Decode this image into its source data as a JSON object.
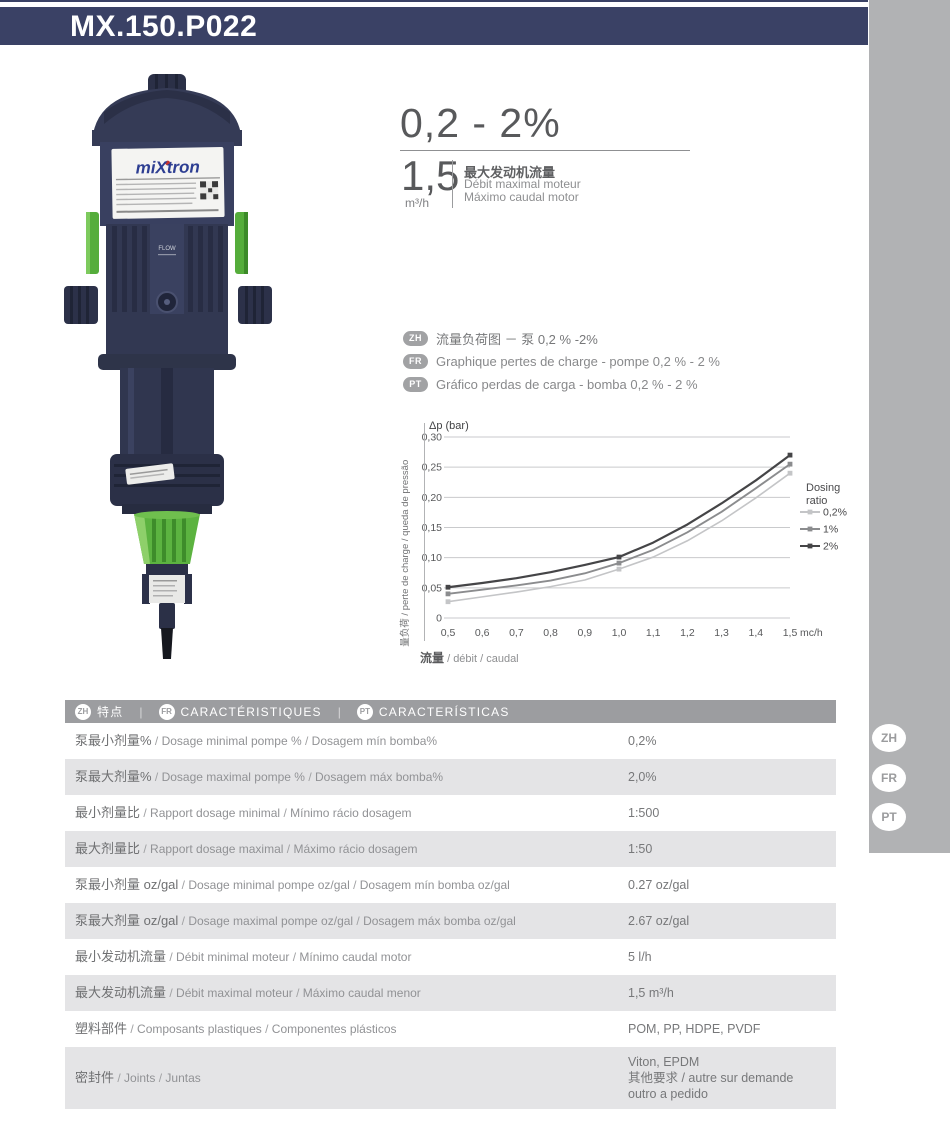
{
  "page": {
    "title": "MX.150.P022"
  },
  "sidebar": {
    "languages": [
      "ZH",
      "FR",
      "PT"
    ]
  },
  "product": {
    "brand": "miXtron",
    "body_label": "FLOW",
    "dosing_range": "0,2 - 2%",
    "max_flow_value": "1,5",
    "max_flow_unit": "m³/h",
    "max_flow_label_zh": "最大发动机流量",
    "max_flow_label_fr": "Débit maximal moteur",
    "max_flow_label_pt": "Máximo caudal motor"
  },
  "chart_captions": [
    {
      "lang": "ZH",
      "text": "流量负荷图 － 泵 0,2 % -2%"
    },
    {
      "lang": "FR",
      "text": "Graphique pertes de charge - pompe 0,2 % - 2 %"
    },
    {
      "lang": "PT",
      "text": "Gráfico perdas de carga  -  bomba 0,2 % - 2 %"
    }
  ],
  "chart_data": {
    "type": "line",
    "ylabel_top": "Δp (bar)",
    "ylabel_side": "流量负荷 / perte de charge / queda de pressão",
    "xlabel_unit": "mc/h",
    "xlabel_bottom_zh": "流量",
    "xlabel_bottom_latin": "/ débit / caudal",
    "ylim": [
      0,
      0.3
    ],
    "xlim": [
      0.5,
      1.5
    ],
    "y_tick_values": [
      0,
      0.05,
      0.1,
      0.15,
      0.2,
      0.25,
      0.3
    ],
    "y_ticks": [
      "0",
      "0,05",
      "0,10",
      "0,15",
      "0,20",
      "0,25",
      "0,30"
    ],
    "x_tick_values": [
      0.5,
      0.6,
      0.7,
      0.8,
      0.9,
      1.0,
      1.1,
      1.2,
      1.3,
      1.4,
      1.5
    ],
    "x_ticks": [
      "0,5",
      "0,6",
      "0,7",
      "0,8",
      "0,9",
      "1,0",
      "1,1",
      "1,2",
      "1,3",
      "1,4",
      "1,5"
    ],
    "legend_title": "Dosing ratio",
    "x": [
      0.5,
      0.6,
      0.7,
      0.8,
      0.9,
      1.0,
      1.1,
      1.2,
      1.3,
      1.4,
      1.5
    ],
    "marker_x": [
      0.5,
      1.0,
      1.5
    ],
    "series": [
      {
        "name": "0,2%",
        "color": "#c4c5c7",
        "width": 1.6,
        "values": [
          0.027,
          0.035,
          0.043,
          0.052,
          0.063,
          0.081,
          0.101,
          0.128,
          0.161,
          0.199,
          0.24
        ]
      },
      {
        "name": "1%",
        "color": "#8b8c8e",
        "width": 1.9,
        "values": [
          0.04,
          0.047,
          0.054,
          0.062,
          0.074,
          0.091,
          0.113,
          0.142,
          0.176,
          0.215,
          0.255
        ]
      },
      {
        "name": "2%",
        "color": "#454547",
        "width": 2.2,
        "values": [
          0.051,
          0.058,
          0.066,
          0.076,
          0.088,
          0.101,
          0.125,
          0.155,
          0.19,
          0.228,
          0.27
        ]
      }
    ],
    "grid": true,
    "legend_position": "right"
  },
  "spec_table": {
    "header": {
      "zh_badge": "ZH",
      "zh": "特点",
      "fr_badge": "FR",
      "fr": "CARACTÉRISTIQUES",
      "pt_badge": "PT",
      "pt": "CARACTERÍSTICAS",
      "separator": "|"
    },
    "rows": [
      {
        "zh": "泵最小剂量%",
        "fr": "Dosage minimal pompe %",
        "pt": "Dosagem mín bomba%",
        "value": "0,2%"
      },
      {
        "zh": "泵最大剂量%",
        "fr": "Dosage maximal pompe %",
        "pt": "Dosagem máx bomba%",
        "value": "2,0%"
      },
      {
        "zh": "最小剂量比",
        "fr": "Rapport dosage minimal",
        "pt": "Mínimo rácio dosagem",
        "value": "1:500"
      },
      {
        "zh": "最大剂量比",
        "fr": "Rapport dosage maximal",
        "pt": "Máximo rácio dosagem",
        "value": "1:50"
      },
      {
        "zh": "泵最小剂量 oz/gal",
        "fr": "Dosage minimal pompe oz/gal",
        "pt": "Dosagem mín bomba oz/gal",
        "value": "0.27 oz/gal"
      },
      {
        "zh": "泵最大剂量 oz/gal",
        "fr": "Dosage maximal pompe oz/gal",
        "pt": "Dosagem máx bomba oz/gal",
        "value": "2.67 oz/gal"
      },
      {
        "zh": "最小发动机流量",
        "fr": "Débit minimal moteur",
        "pt": "Mínimo caudal motor",
        "value": "5 l/h"
      },
      {
        "zh": "最大发动机流量",
        "fr": "Débit maximal moteur",
        "pt": "Máximo caudal menor",
        "value": "1,5 m³/h"
      },
      {
        "zh": "塑料部件",
        "fr": "Composants plastiques",
        "pt": "Componentes plásticos",
        "value": "POM, PP, HDPE, PVDF"
      },
      {
        "zh": "密封件",
        "fr": "Joints",
        "pt": "Juntas",
        "value_lines": [
          "Viton, EPDM",
          "其他要求 / autre sur demande",
          "outro a pedido"
        ]
      }
    ]
  },
  "colors": {
    "navy": "#3a4165",
    "sidebar_gray": "#b1b2b4",
    "header_gray": "#9c9da0",
    "row_gray": "#e4e4e6",
    "green": "#55ad3b",
    "grid": "#c9cacc"
  }
}
